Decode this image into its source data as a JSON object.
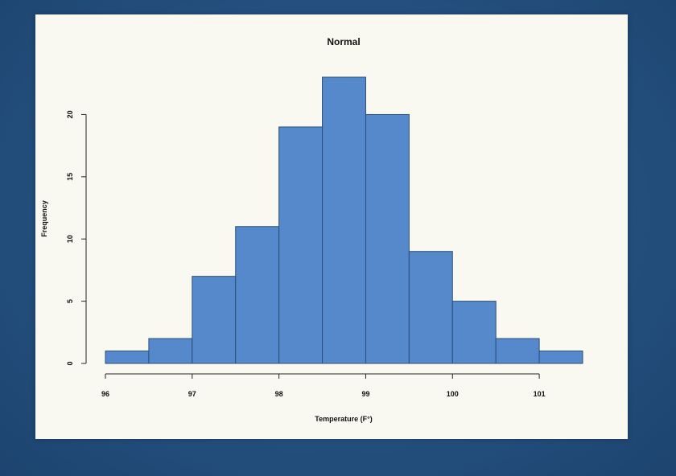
{
  "chart_data": {
    "type": "bar",
    "title": "Normal",
    "xlabel": "Temperature (F°)",
    "ylabel": "Frequency",
    "bins": [
      {
        "start": 96.0,
        "end": 96.5,
        "count": 1
      },
      {
        "start": 96.5,
        "end": 97.0,
        "count": 2
      },
      {
        "start": 97.0,
        "end": 97.5,
        "count": 7
      },
      {
        "start": 97.5,
        "end": 98.0,
        "count": 11
      },
      {
        "start": 98.0,
        "end": 98.5,
        "count": 19
      },
      {
        "start": 98.5,
        "end": 99.0,
        "count": 23
      },
      {
        "start": 99.0,
        "end": 99.5,
        "count": 20
      },
      {
        "start": 99.5,
        "end": 100.0,
        "count": 9
      },
      {
        "start": 100.0,
        "end": 100.5,
        "count": 5
      },
      {
        "start": 100.5,
        "end": 101.0,
        "count": 2
      },
      {
        "start": 101.0,
        "end": 101.5,
        "count": 1
      }
    ],
    "xlim": [
      96,
      101.5
    ],
    "ylim": [
      0,
      23
    ],
    "xticks": [
      96,
      97,
      98,
      99,
      100,
      101
    ],
    "yticks": [
      0,
      5,
      10,
      15,
      20
    ],
    "grid": false,
    "legend": "none",
    "bar_color": "#5589cb"
  },
  "colors": {
    "background": "#24507f",
    "panel": "#f9f9f1",
    "bar_fill": "#5589cb",
    "bar_outline": "#2b4f78"
  }
}
